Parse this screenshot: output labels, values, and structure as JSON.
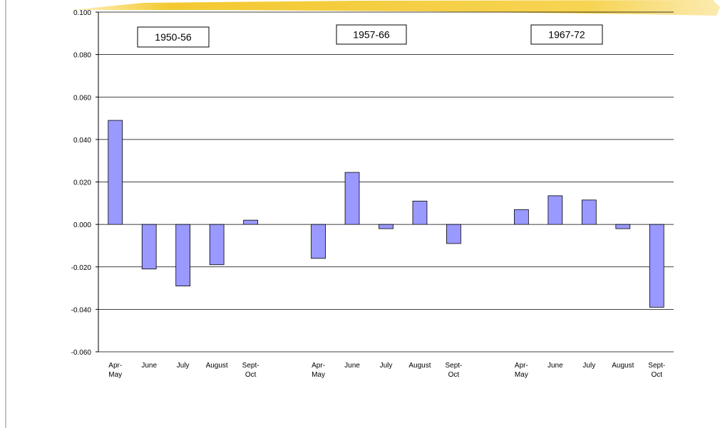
{
  "chart_data": {
    "type": "bar",
    "annotations": [
      "1950-56",
      "1957-66",
      "1967-72"
    ],
    "categories": [
      "Apr-\nMay",
      "June",
      "July",
      "August",
      "Sept-\nOct",
      null,
      "Apr-\nMay",
      "June",
      "July",
      "August",
      "Sept-\nOct",
      null,
      "Apr-\nMay",
      "June",
      "July",
      "August",
      "Sept-\nOct"
    ],
    "values": [
      0.049,
      -0.021,
      -0.029,
      -0.019,
      0.002,
      null,
      -0.016,
      0.0245,
      -0.002,
      0.011,
      -0.009,
      null,
      0.007,
      0.0135,
      0.0115,
      -0.002,
      -0.039
    ],
    "color": "#9999ff",
    "ylim": [
      -0.06,
      0.1
    ],
    "yticks": [
      {
        "value": -0.06,
        "label": "-0.060"
      },
      {
        "value": -0.04,
        "label": "-0.040"
      },
      {
        "value": -0.02,
        "label": "-0.020"
      },
      {
        "value": 0,
        "label": "0.000"
      },
      {
        "value": 0.02,
        "label": "0.020"
      },
      {
        "value": 0.04,
        "label": "0.040"
      },
      {
        "value": 0.06,
        "label": "0.060"
      },
      {
        "value": 0.08,
        "label": "0.080"
      },
      {
        "value": 0.1,
        "label": "0.100"
      }
    ],
    "grid": true
  }
}
